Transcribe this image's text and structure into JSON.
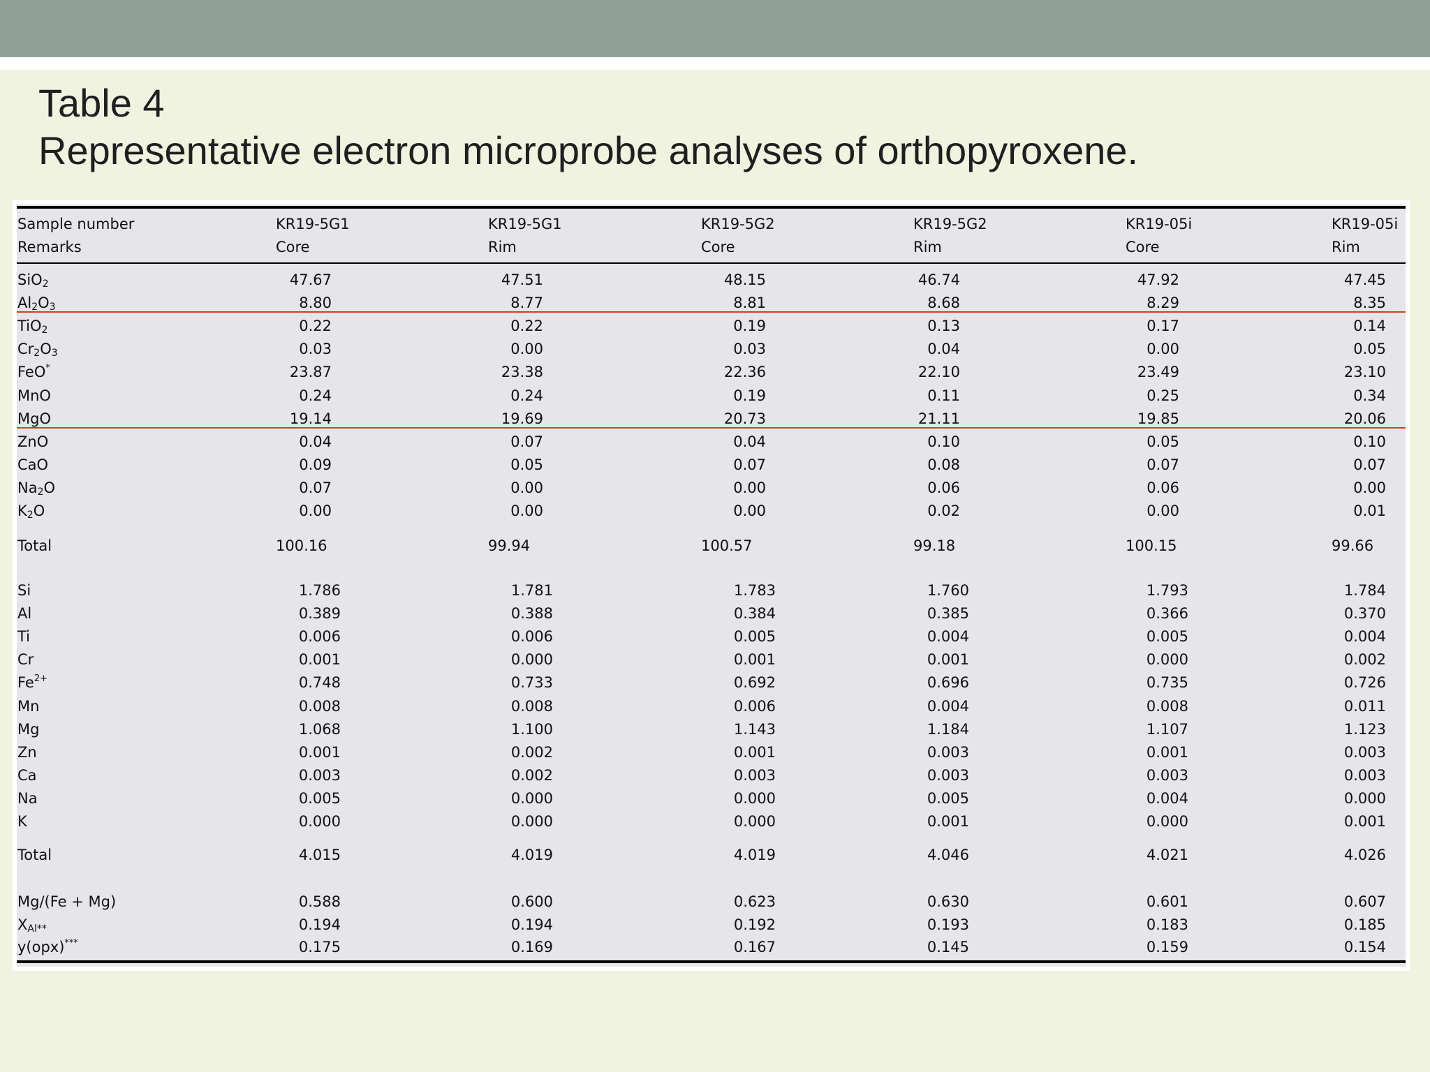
{
  "title": {
    "line1": "Table 4",
    "line2": "Representative electron microprobe analyses of orthopyroxene."
  },
  "header": {
    "sample_label": "Sample number",
    "remarks_label": "Remarks",
    "samples": [
      "KR19-5G1",
      "KR19-5G1",
      "KR19-5G2",
      "KR19-5G2",
      "KR19-05i",
      "KR19-05i"
    ],
    "remarks": [
      "Core",
      "Rim",
      "Core",
      "Rim",
      "Core",
      "Rim"
    ]
  },
  "oxides": [
    {
      "label": "SiO",
      "sub": "2",
      "values": [
        "47.67",
        "47.51",
        "48.15",
        "46.74",
        "47.92",
        "47.45"
      ]
    },
    {
      "label": "Al",
      "sub": "2",
      "label2": "O",
      "sub2": "3",
      "values": [
        "8.80",
        "8.77",
        "8.81",
        "8.68",
        "8.29",
        "8.35"
      ]
    },
    {
      "label": "TiO",
      "sub": "2",
      "values": [
        "0.22",
        "0.22",
        "0.19",
        "0.13",
        "0.17",
        "0.14"
      ]
    },
    {
      "label": "Cr",
      "sub": "2",
      "label2": "O",
      "sub2": "3",
      "values": [
        "0.03",
        "0.00",
        "0.03",
        "0.04",
        "0.00",
        "0.05"
      ]
    },
    {
      "label": "FeO",
      "sup": "*",
      "values": [
        "23.87",
        "23.38",
        "22.36",
        "22.10",
        "23.49",
        "23.10"
      ]
    },
    {
      "label": "MnO",
      "values": [
        "0.24",
        "0.24",
        "0.19",
        "0.11",
        "0.25",
        "0.34"
      ]
    },
    {
      "label": "MgO",
      "values": [
        "19.14",
        "19.69",
        "20.73",
        "21.11",
        "19.85",
        "20.06"
      ]
    },
    {
      "label": "ZnO",
      "values": [
        "0.04",
        "0.07",
        "0.04",
        "0.10",
        "0.05",
        "0.10"
      ]
    },
    {
      "label": "CaO",
      "values": [
        "0.09",
        "0.05",
        "0.07",
        "0.08",
        "0.07",
        "0.07"
      ]
    },
    {
      "label": "Na",
      "sub": "2",
      "label2": "O",
      "values": [
        "0.07",
        "0.00",
        "0.00",
        "0.06",
        "0.06",
        "0.00"
      ]
    },
    {
      "label": "K",
      "sub": "2",
      "label2": "O",
      "values": [
        "0.00",
        "0.00",
        "0.00",
        "0.02",
        "0.00",
        "0.01"
      ]
    }
  ],
  "oxide_total": {
    "label": "Total",
    "values": [
      "100.16",
      "99.94",
      "100.57",
      "99.18",
      "100.15",
      "99.66"
    ]
  },
  "cations": [
    {
      "label": "Si",
      "values": [
        "1.786",
        "1.781",
        "1.783",
        "1.760",
        "1.793",
        "1.784"
      ]
    },
    {
      "label": "Al",
      "values": [
        "0.389",
        "0.388",
        "0.384",
        "0.385",
        "0.366",
        "0.370"
      ]
    },
    {
      "label": "Ti",
      "values": [
        "0.006",
        "0.006",
        "0.005",
        "0.004",
        "0.005",
        "0.004"
      ]
    },
    {
      "label": "Cr",
      "values": [
        "0.001",
        "0.000",
        "0.001",
        "0.001",
        "0.000",
        "0.002"
      ]
    },
    {
      "label": "Fe",
      "sup": "2+",
      "values": [
        "0.748",
        "0.733",
        "0.692",
        "0.696",
        "0.735",
        "0.726"
      ]
    },
    {
      "label": "Mn",
      "values": [
        "0.008",
        "0.008",
        "0.006",
        "0.004",
        "0.008",
        "0.011"
      ]
    },
    {
      "label": "Mg",
      "values": [
        "1.068",
        "1.100",
        "1.143",
        "1.184",
        "1.107",
        "1.123"
      ]
    },
    {
      "label": "Zn",
      "values": [
        "0.001",
        "0.002",
        "0.001",
        "0.003",
        "0.001",
        "0.003"
      ]
    },
    {
      "label": "Ca",
      "values": [
        "0.003",
        "0.002",
        "0.003",
        "0.003",
        "0.003",
        "0.003"
      ]
    },
    {
      "label": "Na",
      "values": [
        "0.005",
        "0.000",
        "0.000",
        "0.005",
        "0.004",
        "0.000"
      ]
    },
    {
      "label": "K",
      "values": [
        "0.000",
        "0.000",
        "0.000",
        "0.001",
        "0.000",
        "0.001"
      ]
    }
  ],
  "cation_total": {
    "label": "Total",
    "values": [
      "4.015",
      "4.019",
      "4.019",
      "4.046",
      "4.021",
      "4.026"
    ]
  },
  "ratios": [
    {
      "label": "Mg/(Fe + Mg)",
      "values": [
        "0.588",
        "0.600",
        "0.623",
        "0.630",
        "0.601",
        "0.607"
      ]
    },
    {
      "label": "X",
      "sub": "Al**",
      "values": [
        "0.194",
        "0.194",
        "0.192",
        "0.193",
        "0.183",
        "0.185"
      ]
    },
    {
      "label": "y(opx)",
      "sup": "***",
      "values": [
        "0.175",
        "0.169",
        "0.167",
        "0.145",
        "0.159",
        "0.154"
      ]
    }
  ]
}
